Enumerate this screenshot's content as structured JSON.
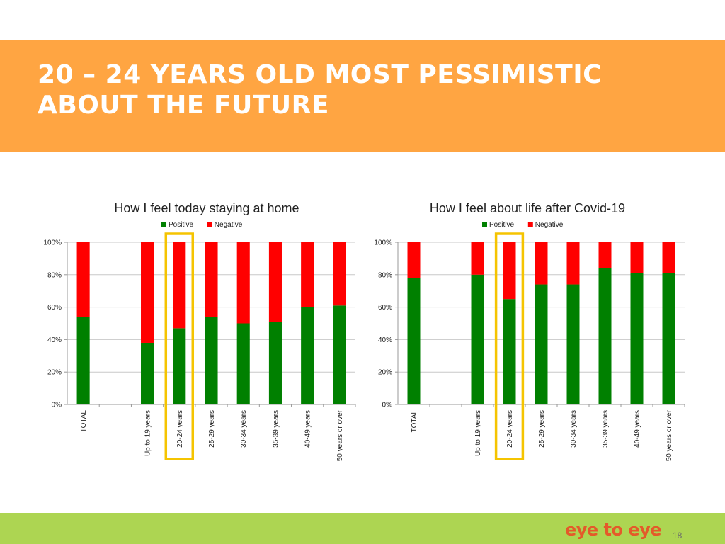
{
  "slide": {
    "title_line1": "20 – 24 YEARS OLD MOST PESSIMISTIC",
    "title_line2": "ABOUT THE FUTURE",
    "banner_color": "#FFA542",
    "footer_color": "#ADD552",
    "logo_text": "eye to eye",
    "logo_color": "#E45A2A",
    "page_number": "18",
    "highlight_color": "#F5C400",
    "highlight_category": "20-24 years"
  },
  "chart_data": [
    {
      "type": "bar",
      "stacked": true,
      "title": "How I feel today staying at home",
      "categories": [
        "TOTAL",
        "",
        "Up to 19 years",
        "20-24 years",
        "25-29 years",
        "30-34 years",
        "35-39 years",
        "40-49 years",
        "50 years or over"
      ],
      "series": [
        {
          "name": "Positive",
          "color": "#008000",
          "values": [
            54,
            null,
            38,
            47,
            54,
            50,
            51,
            60,
            61
          ]
        },
        {
          "name": "Negative",
          "color": "#FF0000",
          "values": [
            46,
            null,
            62,
            53,
            46,
            50,
            49,
            40,
            39
          ]
        }
      ],
      "ylim": [
        0,
        100
      ],
      "yticks": [
        "0%",
        "20%",
        "40%",
        "60%",
        "80%",
        "100%"
      ],
      "grid": true,
      "legend": "top-center"
    },
    {
      "type": "bar",
      "stacked": true,
      "title": "How I feel about life after Covid-19",
      "categories": [
        "TOTAL",
        "",
        "Up to 19 years",
        "20-24 years",
        "25-29 years",
        "30-34 years",
        "35-39 years",
        "40-49 years",
        "50 years or over"
      ],
      "series": [
        {
          "name": "Positive",
          "color": "#008000",
          "values": [
            78,
            null,
            80,
            65,
            74,
            74,
            84,
            81,
            81
          ]
        },
        {
          "name": "Negative",
          "color": "#FF0000",
          "values": [
            22,
            null,
            20,
            35,
            26,
            26,
            16,
            19,
            19
          ]
        }
      ],
      "ylim": [
        0,
        100
      ],
      "yticks": [
        "0%",
        "20%",
        "40%",
        "60%",
        "80%",
        "100%"
      ],
      "grid": true,
      "legend": "top-center"
    }
  ]
}
